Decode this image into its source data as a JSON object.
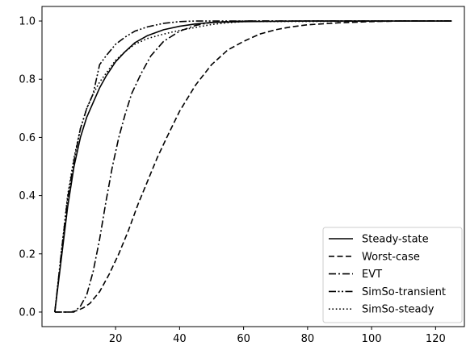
{
  "chart_data": {
    "type": "line",
    "title": "",
    "xlabel": "",
    "ylabel": "",
    "xlim": [
      -3,
      129
    ],
    "ylim": [
      -0.05,
      1.05
    ],
    "xticks": [
      20,
      40,
      60,
      80,
      100,
      120
    ],
    "xtick_labels": [
      "20",
      "40",
      "60",
      "80",
      "100",
      "120"
    ],
    "yticks": [
      0.0,
      0.2,
      0.4,
      0.6,
      0.8,
      1.0
    ],
    "ytick_labels": [
      "0.0",
      "0.2",
      "0.4",
      "0.6",
      "0.8",
      "1.0"
    ],
    "grid": false,
    "legend_position": "lower-right",
    "series": [
      {
        "name": "Steady-state",
        "style": "solid",
        "color": "#000000",
        "points": [
          [
            1,
            0
          ],
          [
            3,
            0.18
          ],
          [
            5,
            0.36
          ],
          [
            7,
            0.5
          ],
          [
            9,
            0.6
          ],
          [
            11,
            0.67
          ],
          [
            13,
            0.72
          ],
          [
            15,
            0.77
          ],
          [
            17,
            0.81
          ],
          [
            20,
            0.86
          ],
          [
            23,
            0.895
          ],
          [
            26,
            0.925
          ],
          [
            30,
            0.95
          ],
          [
            35,
            0.97
          ],
          [
            40,
            0.982
          ],
          [
            45,
            0.99
          ],
          [
            50,
            0.995
          ],
          [
            60,
            0.998
          ],
          [
            80,
            1.0
          ],
          [
            125,
            1.0
          ]
        ]
      },
      {
        "name": "Worst-case",
        "style": "dashed",
        "color": "#000000",
        "points": [
          [
            1,
            0
          ],
          [
            6,
            0
          ],
          [
            8,
            0.005
          ],
          [
            10,
            0.015
          ],
          [
            12,
            0.03
          ],
          [
            15,
            0.07
          ],
          [
            18,
            0.13
          ],
          [
            21,
            0.2
          ],
          [
            24,
            0.28
          ],
          [
            27,
            0.37
          ],
          [
            30,
            0.45
          ],
          [
            33,
            0.53
          ],
          [
            36,
            0.6
          ],
          [
            40,
            0.69
          ],
          [
            45,
            0.78
          ],
          [
            50,
            0.85
          ],
          [
            55,
            0.9
          ],
          [
            60,
            0.93
          ],
          [
            65,
            0.955
          ],
          [
            70,
            0.97
          ],
          [
            75,
            0.98
          ],
          [
            80,
            0.987
          ],
          [
            90,
            0.994
          ],
          [
            100,
            0.998
          ],
          [
            110,
            1.0
          ],
          [
            125,
            1.0
          ]
        ]
      },
      {
        "name": "EVT",
        "style": "dashdot",
        "color": "#000000",
        "points": [
          [
            1,
            0
          ],
          [
            7,
            0
          ],
          [
            9,
            0.02
          ],
          [
            11,
            0.06
          ],
          [
            13,
            0.14
          ],
          [
            15,
            0.25
          ],
          [
            17,
            0.38
          ],
          [
            19,
            0.5
          ],
          [
            21,
            0.6
          ],
          [
            23,
            0.68
          ],
          [
            25,
            0.75
          ],
          [
            28,
            0.82
          ],
          [
            31,
            0.88
          ],
          [
            35,
            0.93
          ],
          [
            40,
            0.965
          ],
          [
            45,
            0.985
          ],
          [
            50,
            0.995
          ],
          [
            55,
            0.998
          ],
          [
            60,
            1.0
          ],
          [
            125,
            1.0
          ]
        ]
      },
      {
        "name": "SimSo-transient",
        "style": "dashdotdot",
        "color": "#000000",
        "points": [
          [
            1,
            0
          ],
          [
            3,
            0.2
          ],
          [
            5,
            0.39
          ],
          [
            7,
            0.52
          ],
          [
            9,
            0.63
          ],
          [
            11,
            0.7
          ],
          [
            13,
            0.75
          ],
          [
            15,
            0.85
          ],
          [
            17,
            0.88
          ],
          [
            20,
            0.92
          ],
          [
            23,
            0.945
          ],
          [
            26,
            0.965
          ],
          [
            30,
            0.98
          ],
          [
            35,
            0.992
          ],
          [
            40,
            0.998
          ],
          [
            45,
            1.0
          ],
          [
            60,
            1.0
          ],
          [
            125,
            1.0
          ]
        ]
      },
      {
        "name": "SimSo-steady",
        "style": "dotted",
        "color": "#000000",
        "points": [
          [
            1,
            0
          ],
          [
            3,
            0.2
          ],
          [
            5,
            0.4
          ],
          [
            7,
            0.53
          ],
          [
            9,
            0.63
          ],
          [
            11,
            0.7
          ],
          [
            13,
            0.75
          ],
          [
            15,
            0.79
          ],
          [
            17,
            0.82
          ],
          [
            20,
            0.865
          ],
          [
            23,
            0.895
          ],
          [
            26,
            0.92
          ],
          [
            30,
            0.94
          ],
          [
            35,
            0.955
          ],
          [
            40,
            0.968
          ],
          [
            45,
            0.978
          ],
          [
            50,
            0.988
          ],
          [
            55,
            0.994
          ],
          [
            60,
            0.998
          ],
          [
            125,
            1.0
          ]
        ]
      }
    ]
  }
}
